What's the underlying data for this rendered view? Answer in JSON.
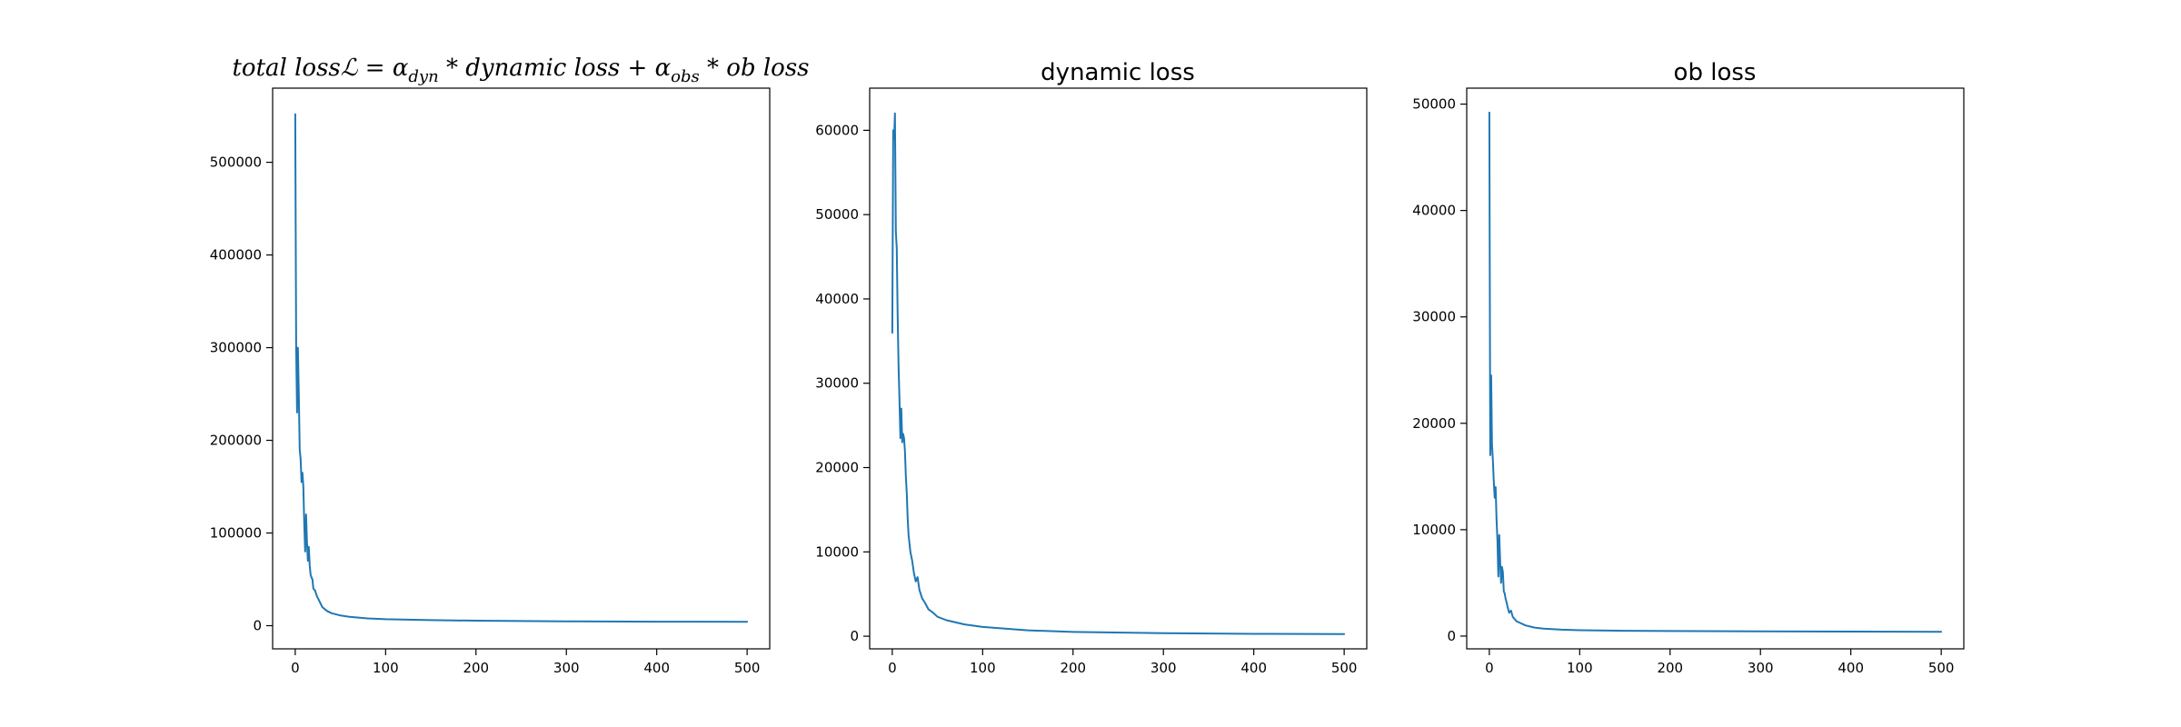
{
  "chart_data": [
    {
      "type": "line",
      "title": "total lossℒ = αdyn * dynamic loss + αobs * ob loss",
      "title_parts": {
        "lead": "total loss",
        "script_L": "ℒ",
        "eq": " = ",
        "alpha": "α",
        "sub_dyn": "dyn",
        "times": " * ",
        "term_dyn": "dynamic loss",
        "plus": " + ",
        "sub_obs": "obs",
        "term_ob": "ob loss"
      },
      "xlabel": "",
      "ylabel": "",
      "xlim": [
        -25,
        525
      ],
      "ylim": [
        -25000,
        580000
      ],
      "xticks": [
        0,
        100,
        200,
        300,
        400,
        500
      ],
      "yticks": [
        0,
        100000,
        200000,
        300000,
        400000,
        500000
      ],
      "series": [
        {
          "color": "#1f77b4",
          "points": [
            [
              0,
              552000
            ],
            [
              1,
              300000
            ],
            [
              2,
              230000
            ],
            [
              3,
              300000
            ],
            [
              4,
              250000
            ],
            [
              5,
              190000
            ],
            [
              6,
              180000
            ],
            [
              7,
              155000
            ],
            [
              8,
              165000
            ],
            [
              9,
              150000
            ],
            [
              10,
              110000
            ],
            [
              11,
              80000
            ],
            [
              12,
              120000
            ],
            [
              13,
              90000
            ],
            [
              14,
              70000
            ],
            [
              15,
              85000
            ],
            [
              16,
              65000
            ],
            [
              17,
              55000
            ],
            [
              18,
              52000
            ],
            [
              19,
              50000
            ],
            [
              20,
              40000
            ],
            [
              22,
              38000
            ],
            [
              24,
              32000
            ],
            [
              26,
              28000
            ],
            [
              28,
              24000
            ],
            [
              30,
              20000
            ],
            [
              35,
              16000
            ],
            [
              40,
              13500
            ],
            [
              50,
              11000
            ],
            [
              60,
              9500
            ],
            [
              80,
              7800
            ],
            [
              100,
              7000
            ],
            [
              150,
              6000
            ],
            [
              200,
              5400
            ],
            [
              300,
              4700
            ],
            [
              400,
              4300
            ],
            [
              500,
              4100
            ]
          ]
        }
      ]
    },
    {
      "type": "line",
      "title": "dynamic loss",
      "xlabel": "",
      "ylabel": "",
      "xlim": [
        -25,
        525
      ],
      "ylim": [
        -1500,
        65000
      ],
      "xticks": [
        0,
        100,
        200,
        300,
        400,
        500
      ],
      "yticks": [
        0,
        10000,
        20000,
        30000,
        40000,
        50000,
        60000
      ],
      "series": [
        {
          "color": "#1f77b4",
          "points": [
            [
              0,
              36000
            ],
            [
              1,
              60000
            ],
            [
              2,
              59000
            ],
            [
              3,
              62000
            ],
            [
              4,
              48000
            ],
            [
              5,
              46000
            ],
            [
              6,
              38000
            ],
            [
              7,
              32000
            ],
            [
              8,
              28000
            ],
            [
              9,
              23500
            ],
            [
              10,
              27000
            ],
            [
              11,
              23000
            ],
            [
              12,
              24000
            ],
            [
              13,
              23500
            ],
            [
              14,
              22000
            ],
            [
              15,
              19000
            ],
            [
              16,
              17000
            ],
            [
              17,
              14000
            ],
            [
              18,
              12000
            ],
            [
              19,
              11000
            ],
            [
              20,
              10000
            ],
            [
              22,
              9000
            ],
            [
              24,
              7500
            ],
            [
              26,
              6500
            ],
            [
              28,
              7000
            ],
            [
              30,
              5500
            ],
            [
              33,
              4500
            ],
            [
              36,
              4000
            ],
            [
              40,
              3200
            ],
            [
              45,
              2800
            ],
            [
              50,
              2300
            ],
            [
              60,
              1900
            ],
            [
              80,
              1400
            ],
            [
              100,
              1100
            ],
            [
              150,
              700
            ],
            [
              200,
              500
            ],
            [
              300,
              350
            ],
            [
              400,
              280
            ],
            [
              500,
              250
            ]
          ]
        }
      ]
    },
    {
      "type": "line",
      "title": "ob loss",
      "xlabel": "",
      "ylabel": "",
      "xlim": [
        -25,
        525
      ],
      "ylim": [
        -1200,
        51500
      ],
      "xticks": [
        0,
        100,
        200,
        300,
        400,
        500
      ],
      "yticks": [
        0,
        10000,
        20000,
        30000,
        40000,
        50000
      ],
      "series": [
        {
          "color": "#1f77b4",
          "points": [
            [
              0,
              49200
            ],
            [
              1,
              17000
            ],
            [
              2,
              24500
            ],
            [
              3,
              18000
            ],
            [
              4,
              16500
            ],
            [
              5,
              14500
            ],
            [
              6,
              13000
            ],
            [
              7,
              14000
            ],
            [
              8,
              11000
            ],
            [
              9,
              9000
            ],
            [
              10,
              5600
            ],
            [
              11,
              9500
            ],
            [
              12,
              7000
            ],
            [
              13,
              5000
            ],
            [
              14,
              6500
            ],
            [
              15,
              6000
            ],
            [
              16,
              4200
            ],
            [
              17,
              4000
            ],
            [
              18,
              3500
            ],
            [
              19,
              3200
            ],
            [
              20,
              2800
            ],
            [
              22,
              2200
            ],
            [
              24,
              2400
            ],
            [
              26,
              1800
            ],
            [
              28,
              1600
            ],
            [
              30,
              1400
            ],
            [
              35,
              1200
            ],
            [
              40,
              1000
            ],
            [
              50,
              800
            ],
            [
              60,
              700
            ],
            [
              80,
              600
            ],
            [
              100,
              550
            ],
            [
              150,
              500
            ],
            [
              200,
              470
            ],
            [
              300,
              440
            ],
            [
              400,
              420
            ],
            [
              500,
              410
            ]
          ]
        }
      ]
    }
  ]
}
